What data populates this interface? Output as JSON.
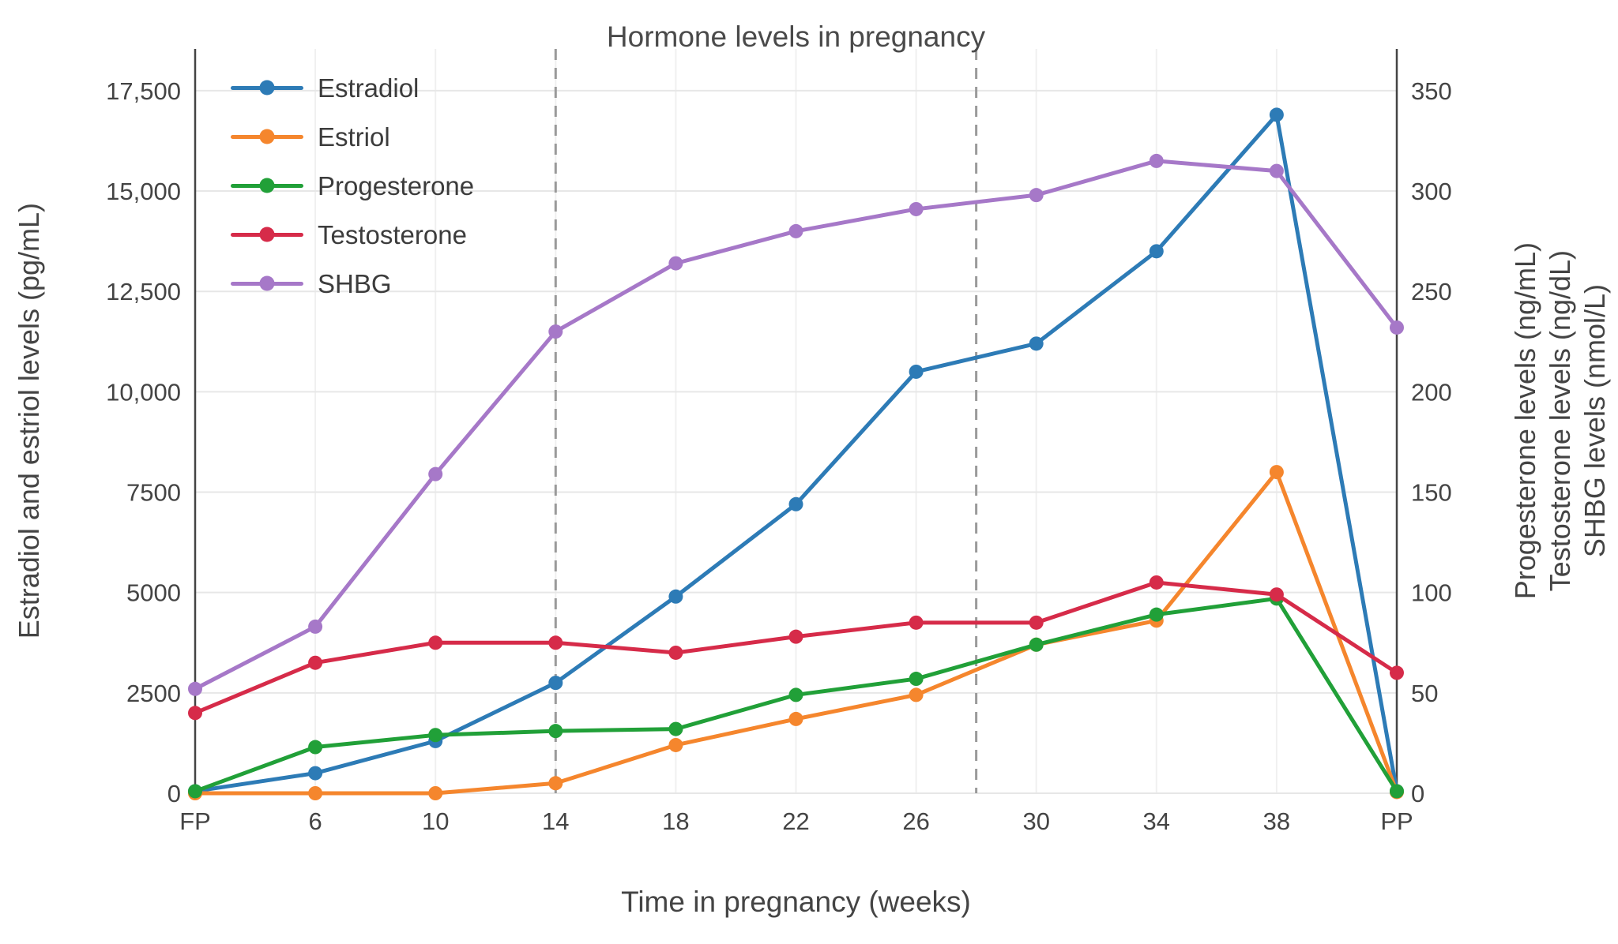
{
  "chart_data": {
    "type": "line",
    "title": "Hormone levels in pregnancy",
    "xlabel": "Time in pregnancy (weeks)",
    "ylabel_left": "Estradiol and estriol levels (pg/mL)",
    "ylabels_right": [
      "Progesterone levels (ng/mL)",
      "Testosterone levels (ng/dL)",
      "SHBG levels (nmol/L)"
    ],
    "categories": [
      "FP",
      "6",
      "10",
      "14",
      "18",
      "22",
      "26",
      "30",
      "34",
      "38",
      "PP"
    ],
    "left_axis": {
      "tick_values": [
        0,
        2500,
        5000,
        7500,
        10000,
        12500,
        15000,
        17500
      ],
      "tick_labels": [
        "0",
        "2500",
        "5000",
        "7500",
        "10,000",
        "12,500",
        "15,000",
        "17,500"
      ],
      "max": 18540
    },
    "right_axis": {
      "tick_values": [
        0,
        50,
        100,
        150,
        200,
        250,
        300,
        350
      ],
      "tick_labels": [
        "0",
        "50",
        "100",
        "150",
        "200",
        "250",
        "300",
        "350"
      ]
    },
    "right_to_left_scale": 50,
    "grid": true,
    "legend_position": "top-left",
    "reference_lines": {
      "dashed_at_category_index": [
        3,
        6.5
      ],
      "solid_at_category_index": [
        0,
        10
      ]
    },
    "series": [
      {
        "name": "Estradiol",
        "axis": "left",
        "color": "#2d7bb6",
        "values": [
          50,
          500,
          1300,
          2750,
          4900,
          7200,
          10500,
          11200,
          13500,
          16900,
          50
        ]
      },
      {
        "name": "Estriol",
        "axis": "left",
        "color": "#f5862d",
        "values": [
          0,
          0,
          0,
          250,
          1200,
          1850,
          2450,
          3700,
          4300,
          8000,
          30
        ]
      },
      {
        "name": "Progesterone",
        "axis": "right",
        "color": "#21a038",
        "values": [
          1,
          23,
          29,
          31,
          32,
          49,
          57,
          74,
          89,
          97,
          1
        ]
      },
      {
        "name": "Testosterone",
        "axis": "right",
        "color": "#d62b49",
        "values": [
          40,
          65,
          75,
          75,
          70,
          78,
          85,
          85,
          105,
          99,
          60
        ]
      },
      {
        "name": "SHBG",
        "axis": "right",
        "color": "#a678c8",
        "values": [
          52,
          83,
          159,
          230,
          264,
          280,
          291,
          298,
          315,
          310,
          232
        ]
      }
    ]
  }
}
